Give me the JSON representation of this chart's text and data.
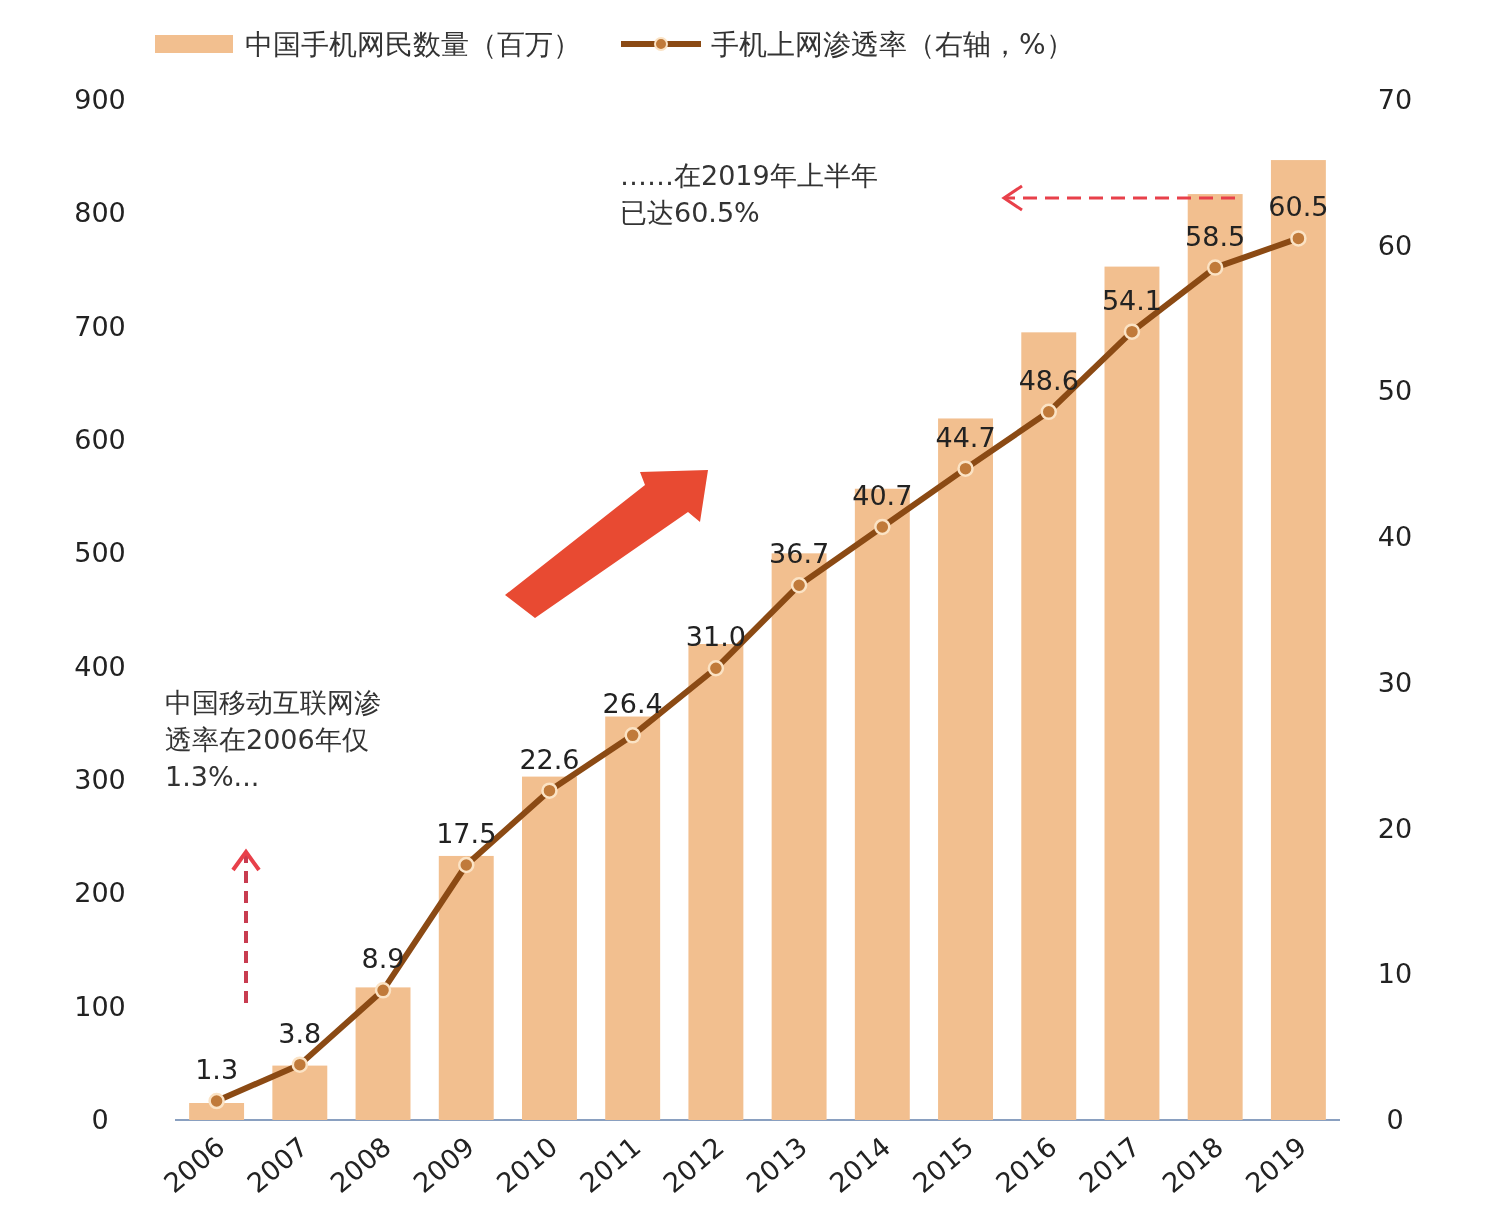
{
  "chart_data": {
    "type": "bar",
    "categories": [
      "2006",
      "2007",
      "2008",
      "2009",
      "2010",
      "2011",
      "2012",
      "2013",
      "2014",
      "2015",
      "2016",
      "2017",
      "2018",
      "2019"
    ],
    "series": [
      {
        "name": "中国手机网民数量（百万）",
        "color": "#f2bf8f",
        "values": [
          15,
          48,
          117,
          233,
          303,
          356,
          420,
          500,
          557,
          619,
          695,
          753,
          817,
          847
        ]
      },
      {
        "name": "手机上网渗透率（右轴，%）",
        "type": "line",
        "axis": "y2",
        "color": "#8b4a14",
        "marker": "circle",
        "line_style": "solid",
        "values": [
          1.3,
          3.8,
          8.9,
          17.5,
          22.6,
          26.4,
          31.0,
          36.7,
          40.7,
          44.7,
          48.6,
          54.1,
          58.5,
          60.5
        ],
        "value_labels": [
          "1.3",
          "3.8",
          "8.9",
          "17.5",
          "22.6",
          "26.4",
          "31.0",
          "36.7",
          "40.7",
          "44.7",
          "48.6",
          "54.1",
          "58.5",
          "60.5"
        ]
      }
    ],
    "ylim": [
      0,
      900
    ],
    "yticks": [
      0,
      100,
      200,
      300,
      400,
      500,
      600,
      700,
      800,
      900
    ],
    "y2lim": [
      0,
      70
    ],
    "y2ticks": [
      0,
      10,
      20,
      30,
      40,
      50,
      60,
      70
    ],
    "grid": false,
    "legend": "top",
    "annotations": [
      "……在2019年上半年已达60.5%",
      "中国移动互联网渗透率在2006年仅1.3%..."
    ]
  }
}
